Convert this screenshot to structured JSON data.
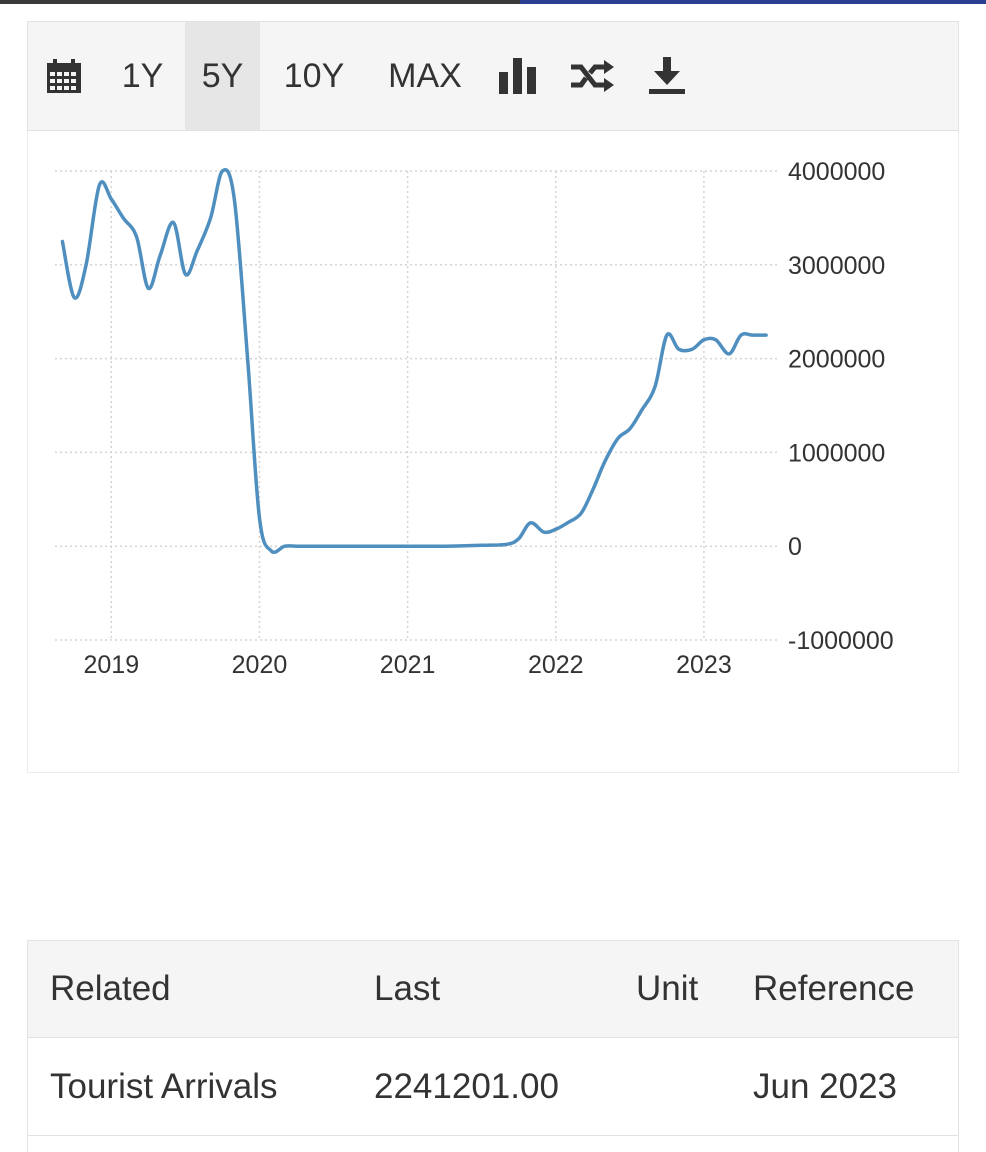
{
  "toolbar": {
    "items": [
      {
        "icon": "calendar-icon"
      },
      {
        "label": "1Y"
      },
      {
        "label": "5Y",
        "active": true
      },
      {
        "label": "10Y"
      },
      {
        "label": "MAX"
      },
      {
        "icon": "bar-chart-icon"
      },
      {
        "icon": "shuffle-icon"
      },
      {
        "icon": "download-icon"
      }
    ]
  },
  "chart_data": {
    "type": "line",
    "title": "",
    "xlabel": "",
    "ylabel": "",
    "line_color": "#4f8fc0",
    "grid": true,
    "yaxis_side": "right",
    "ylim": [
      -1000000,
      4000000
    ],
    "yticks": [
      "4000000",
      "3000000",
      "2000000",
      "1000000",
      "0",
      "-1000000"
    ],
    "ytick_values": [
      4000000,
      3000000,
      2000000,
      1000000,
      0,
      -1000000
    ],
    "xlim": [
      2018.62,
      2023.5
    ],
    "xticks": [
      "2019",
      "2020",
      "2021",
      "2022",
      "2023"
    ],
    "xtick_values": [
      2019,
      2020,
      2021,
      2022,
      2023
    ],
    "x": [
      2018.67,
      2018.75,
      2018.83,
      2018.92,
      2019.0,
      2019.08,
      2019.17,
      2019.25,
      2019.33,
      2019.42,
      2019.5,
      2019.58,
      2019.67,
      2019.75,
      2019.83,
      2019.92,
      2020.0,
      2020.08,
      2020.17,
      2020.25,
      2020.33,
      2020.5,
      2020.75,
      2021.0,
      2021.25,
      2021.5,
      2021.67,
      2021.75,
      2021.83,
      2021.92,
      2022.0,
      2022.08,
      2022.17,
      2022.25,
      2022.33,
      2022.42,
      2022.5,
      2022.58,
      2022.67,
      2022.75,
      2022.83,
      2022.92,
      2023.0,
      2023.08,
      2023.17,
      2023.25,
      2023.33,
      2023.42
    ],
    "values": [
      3250000,
      2650000,
      3000000,
      3850000,
      3700000,
      3500000,
      3300000,
      2750000,
      3100000,
      3450000,
      2900000,
      3150000,
      3500000,
      4000000,
      3700000,
      2000000,
      300000,
      -50000,
      0,
      0,
      0,
      0,
      0,
      0,
      0,
      10000,
      20000,
      80000,
      250000,
      150000,
      180000,
      250000,
      350000,
      600000,
      900000,
      1150000,
      1250000,
      1450000,
      1700000,
      2250000,
      2100000,
      2100000,
      2200000,
      2200000,
      2050000,
      2250000,
      2250000,
      2250000
    ]
  },
  "table": {
    "headers": [
      "Related",
      "Last",
      "Unit",
      "Reference"
    ],
    "rows": [
      {
        "related": "Tourist Arrivals",
        "last": "2241201.00",
        "unit": "",
        "reference": "Jun 2023"
      }
    ]
  }
}
